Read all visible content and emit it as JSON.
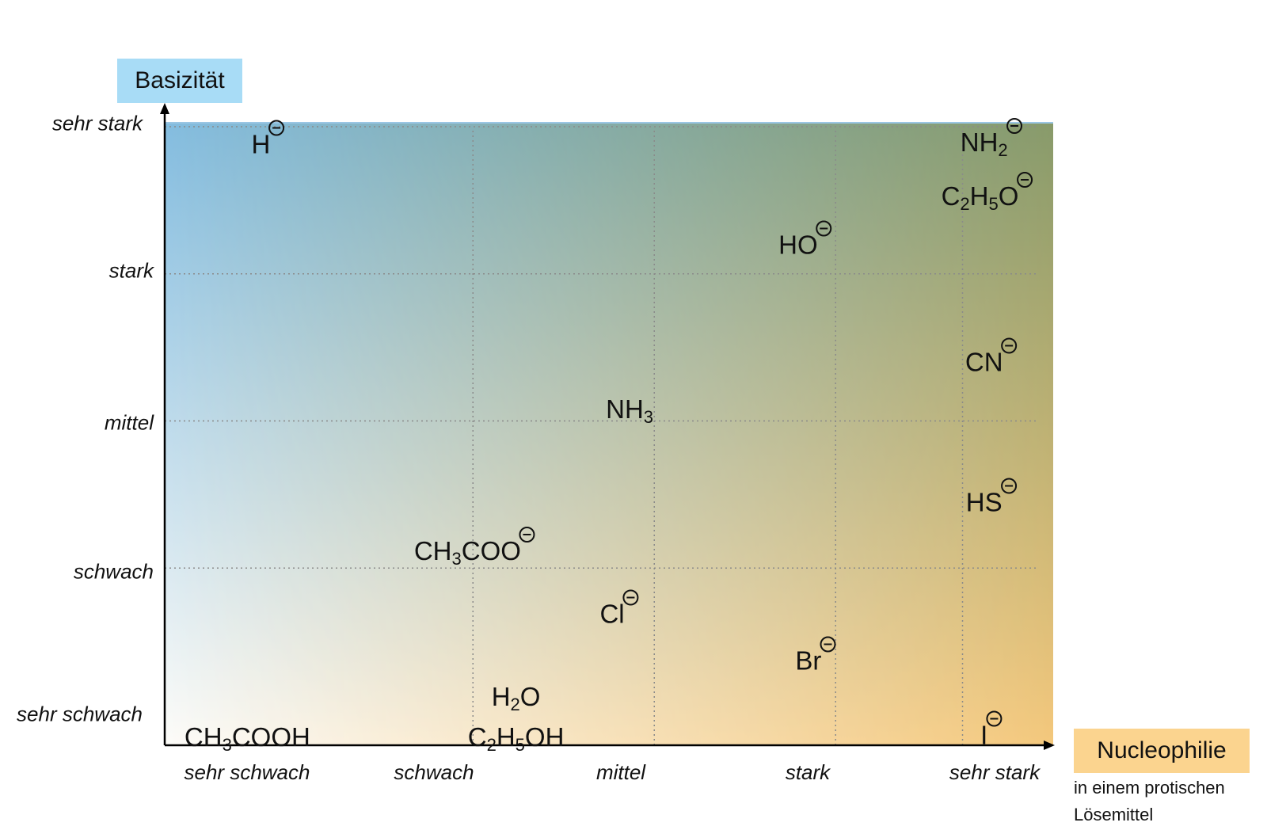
{
  "chart_data": {
    "type": "scatter",
    "ylabel": "Basizität",
    "xlabel": "Nucleophilie",
    "xlabel_note": "in einem protischen Lösemittel",
    "levels": [
      "sehr schwach",
      "schwach",
      "mittel",
      "stark",
      "sehr stark"
    ],
    "x_ticks": [
      "sehr schwach",
      "schwach",
      "mittel",
      "stark",
      "sehr stark"
    ],
    "y_ticks": [
      "sehr schwach",
      "schwach",
      "mittel",
      "stark",
      "sehr stark"
    ],
    "xlim": [
      0,
      4.3
    ],
    "ylim": [
      0,
      4
    ],
    "grid": true,
    "background_gradient": {
      "bottom_left": "#fdfcf9",
      "top_left": "#84bde0",
      "bottom_right": "#f4c87c",
      "top_right": "#889a6a"
    },
    "points": [
      {
        "label": "H",
        "charge": "minus",
        "x": 0.5,
        "y": 3.9
      },
      {
        "label": "NH2",
        "charge": "minus",
        "x": 4.0,
        "y": 3.9
      },
      {
        "label": "C2H5O",
        "charge": "minus",
        "x": 3.98,
        "y": 3.55
      },
      {
        "label": "HO",
        "charge": "minus",
        "x": 3.1,
        "y": 3.25
      },
      {
        "label": "CN",
        "charge": "minus",
        "x": 4.0,
        "y": 2.5
      },
      {
        "label": "NH3",
        "charge": "",
        "x": 2.25,
        "y": 2.15
      },
      {
        "label": "HS",
        "charge": "minus",
        "x": 4.0,
        "y": 1.6
      },
      {
        "label": "CH3COO",
        "charge": "minus",
        "x": 1.5,
        "y": 1.27
      },
      {
        "label": "Cl",
        "charge": "minus",
        "x": 2.2,
        "y": 0.88
      },
      {
        "label": "Br",
        "charge": "minus",
        "x": 3.15,
        "y": 0.58
      },
      {
        "label": "H2O",
        "charge": "",
        "x": 1.7,
        "y": 0.3
      },
      {
        "label": "C2H5OH",
        "charge": "",
        "x": 1.7,
        "y": 0.04
      },
      {
        "label": "CH3COOH",
        "charge": "",
        "x": 0.4,
        "y": 0.04
      },
      {
        "label": "I",
        "charge": "minus",
        "x": 4.0,
        "y": 0.1
      }
    ]
  }
}
